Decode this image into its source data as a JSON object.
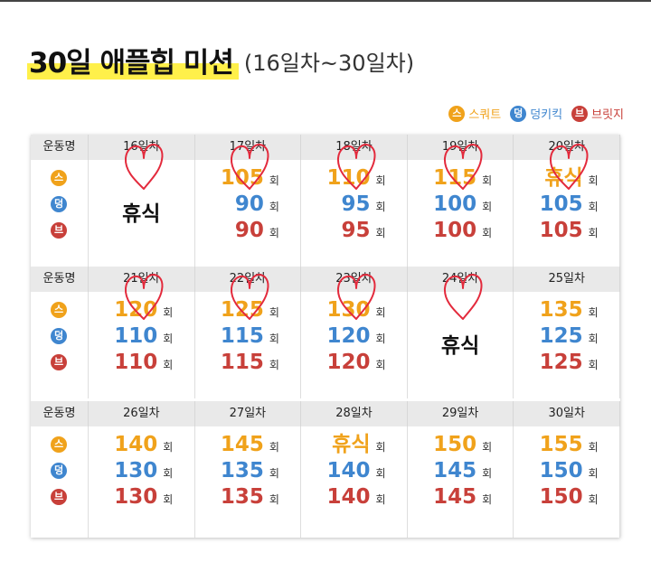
{
  "title": {
    "main": "30일 애플힙 미션",
    "sub": "(16일차~30일차)"
  },
  "legend": [
    {
      "short": "스",
      "label": "스쿼트",
      "type": "s"
    },
    {
      "short": "덩",
      "label": "덩키킥",
      "type": "d"
    },
    {
      "short": "브",
      "label": "브릿지",
      "type": "b"
    }
  ],
  "exercise_header": "운동명",
  "unit": "회",
  "rest_label": "휴식",
  "colors": {
    "squat": "#f0a21b",
    "donkey": "#3f86cf",
    "bridge": "#c8403a",
    "highlight": "#fff04a",
    "heart": "#e32a3c"
  },
  "weeks": [
    {
      "days": [
        {
          "day": "16일차",
          "rest": true,
          "done": true
        },
        {
          "day": "17일차",
          "squat": "105",
          "donkey": "90",
          "bridge": "90",
          "done": true
        },
        {
          "day": "18일차",
          "squat": "110",
          "donkey": "95",
          "bridge": "95",
          "done": true
        },
        {
          "day": "19일차",
          "squat": "115",
          "donkey": "100",
          "bridge": "100",
          "done": true
        },
        {
          "day": "20일차",
          "squat": "휴식",
          "donkey": "105",
          "bridge": "105",
          "done": true
        }
      ]
    },
    {
      "days": [
        {
          "day": "21일차",
          "squat": "120",
          "donkey": "110",
          "bridge": "110",
          "done": true
        },
        {
          "day": "22일차",
          "squat": "125",
          "donkey": "115",
          "bridge": "115",
          "done": true
        },
        {
          "day": "23일차",
          "squat": "130",
          "donkey": "120",
          "bridge": "120",
          "done": true
        },
        {
          "day": "24일차",
          "rest": true,
          "done": true
        },
        {
          "day": "25일차",
          "squat": "135",
          "donkey": "125",
          "bridge": "125",
          "done": false
        }
      ]
    },
    {
      "days": [
        {
          "day": "26일차",
          "squat": "140",
          "donkey": "130",
          "bridge": "130",
          "done": false
        },
        {
          "day": "27일차",
          "squat": "145",
          "donkey": "135",
          "bridge": "135",
          "done": false
        },
        {
          "day": "28일차",
          "squat": "휴식",
          "donkey": "140",
          "bridge": "140",
          "done": false
        },
        {
          "day": "29일차",
          "squat": "150",
          "donkey": "145",
          "bridge": "145",
          "done": false
        },
        {
          "day": "30일차",
          "squat": "155",
          "donkey": "150",
          "bridge": "150",
          "done": false
        }
      ]
    }
  ]
}
